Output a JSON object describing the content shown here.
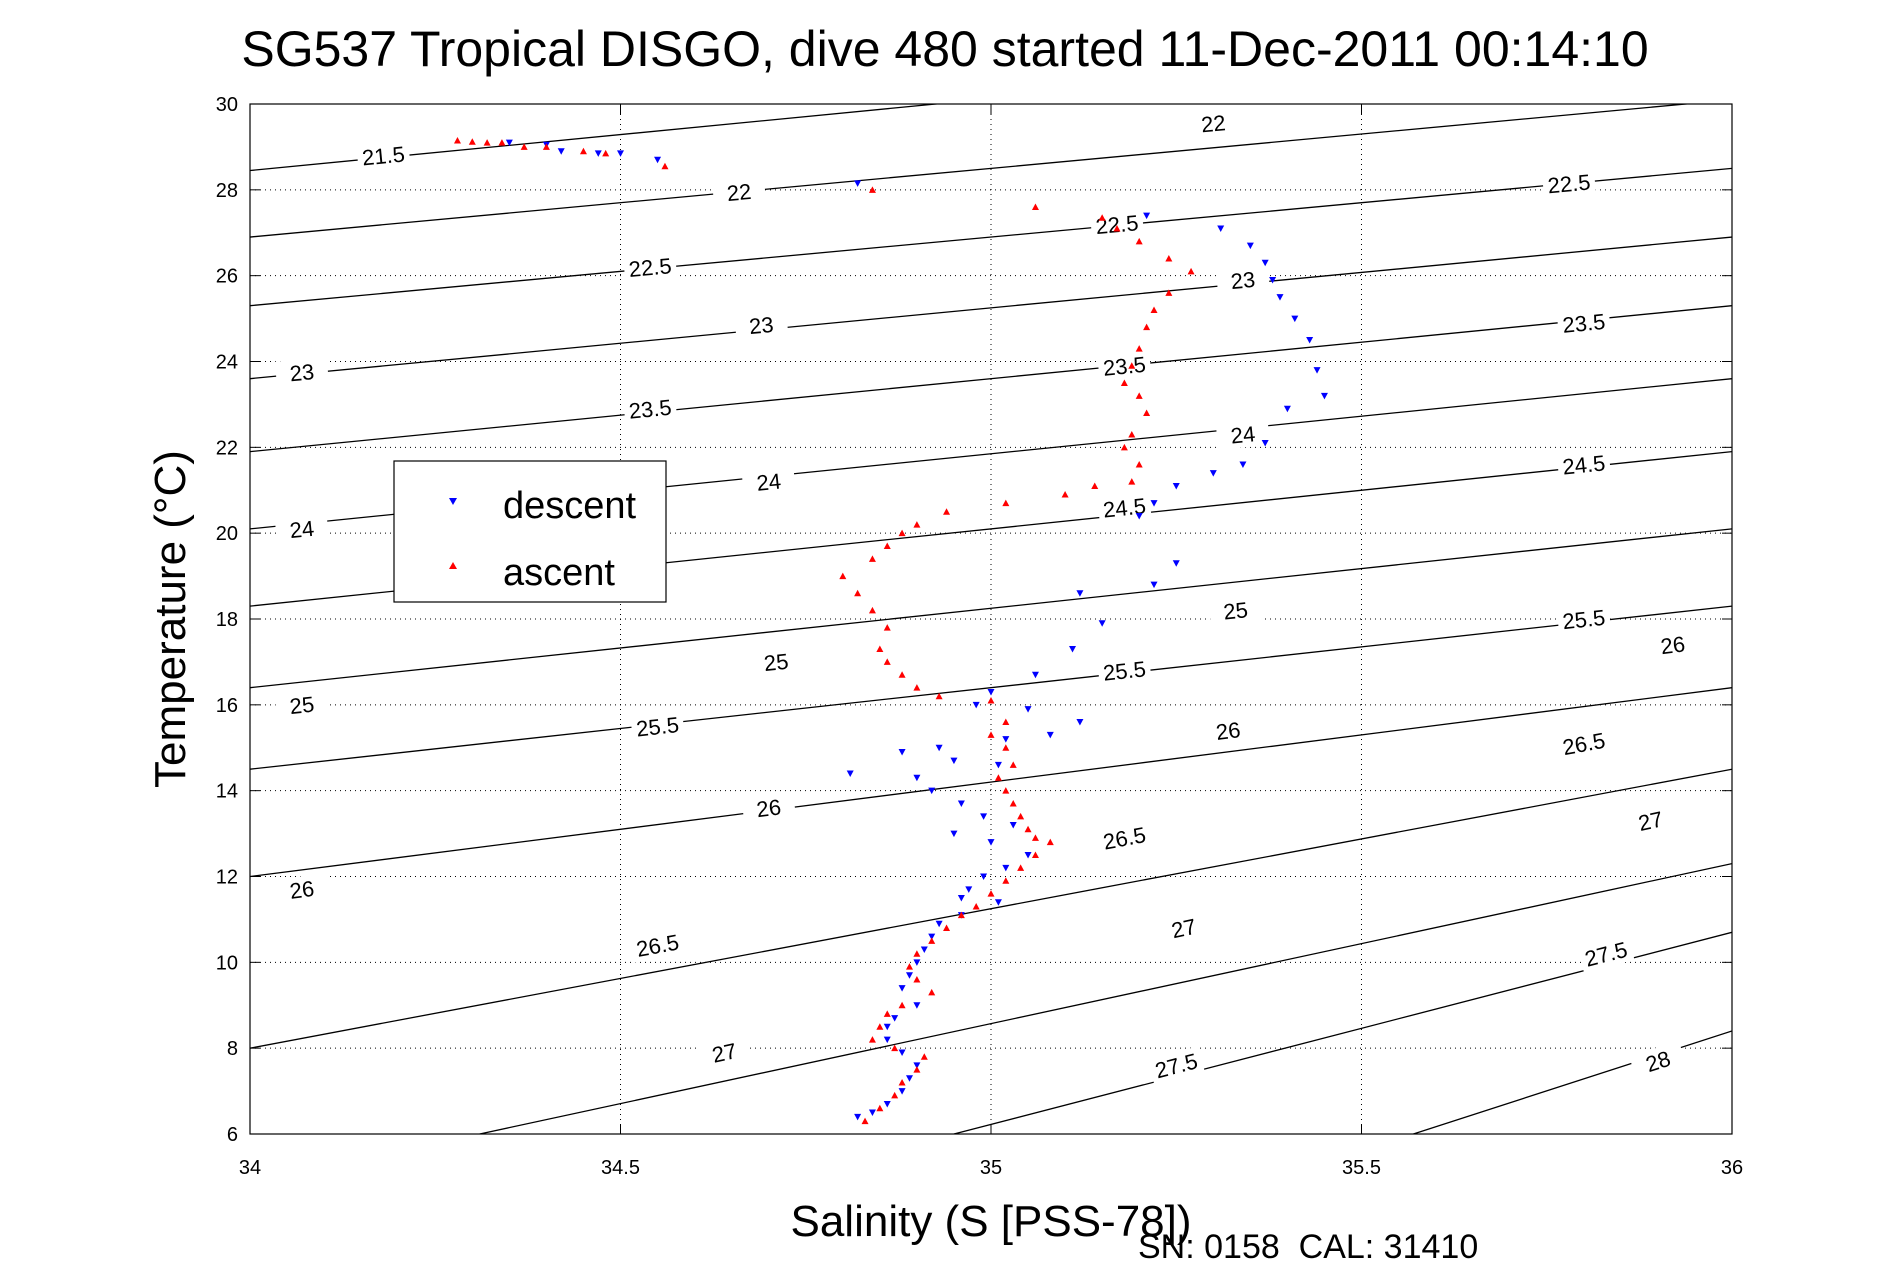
{
  "chart_data": {
    "type": "scatter",
    "title": "SG537 Tropical DISGO, dive 480 started 11-Dec-2011 00:14:10",
    "xlabel": "Salinity (S [PSS-78])",
    "ylabel": "Temperature (°C)",
    "xlim": [
      34,
      36
    ],
    "ylim": [
      6,
      30
    ],
    "x_ticks": [
      "34",
      "34.5",
      "35",
      "35.5",
      "36"
    ],
    "y_ticks": [
      "6",
      "8",
      "10",
      "12",
      "14",
      "16",
      "18",
      "20",
      "22",
      "24",
      "26",
      "28",
      "30"
    ],
    "grid": "on",
    "legend": {
      "position": "left-middle",
      "entries": [
        "descent",
        "ascent"
      ]
    },
    "footer": "SN: 0158  CAL: 31410",
    "colors": {
      "descent": "#0000ff",
      "ascent": "#ff0000",
      "contours": "#000000"
    },
    "series": [
      {
        "name": "descent",
        "marker": "triangle-down",
        "points": [
          [
            34.35,
            29.1
          ],
          [
            34.4,
            29.05
          ],
          [
            34.42,
            28.9
          ],
          [
            34.47,
            28.85
          ],
          [
            34.5,
            28.85
          ],
          [
            34.55,
            28.7
          ],
          [
            34.82,
            28.15
          ],
          [
            35.21,
            27.4
          ],
          [
            35.31,
            27.1
          ],
          [
            35.35,
            26.7
          ],
          [
            35.37,
            26.3
          ],
          [
            35.38,
            25.9
          ],
          [
            35.39,
            25.5
          ],
          [
            35.41,
            25.0
          ],
          [
            35.43,
            24.5
          ],
          [
            35.44,
            23.8
          ],
          [
            35.45,
            23.2
          ],
          [
            35.4,
            22.9
          ],
          [
            35.37,
            22.1
          ],
          [
            35.34,
            21.6
          ],
          [
            35.3,
            21.4
          ],
          [
            35.25,
            21.1
          ],
          [
            35.22,
            20.7
          ],
          [
            35.2,
            20.4
          ],
          [
            35.25,
            19.3
          ],
          [
            35.22,
            18.8
          ],
          [
            35.12,
            18.6
          ],
          [
            35.15,
            17.9
          ],
          [
            35.11,
            17.3
          ],
          [
            35.06,
            16.7
          ],
          [
            35.0,
            16.3
          ],
          [
            34.98,
            16.0
          ],
          [
            35.05,
            15.9
          ],
          [
            35.12,
            15.6
          ],
          [
            35.08,
            15.3
          ],
          [
            35.02,
            15.2
          ],
          [
            34.93,
            15.0
          ],
          [
            34.88,
            14.9
          ],
          [
            34.95,
            14.7
          ],
          [
            35.01,
            14.6
          ],
          [
            34.9,
            14.3
          ],
          [
            34.81,
            14.4
          ],
          [
            34.92,
            14.0
          ],
          [
            34.96,
            13.7
          ],
          [
            34.99,
            13.4
          ],
          [
            35.03,
            13.2
          ],
          [
            34.95,
            13.0
          ],
          [
            35.0,
            12.8
          ],
          [
            35.05,
            12.5
          ],
          [
            35.02,
            12.2
          ],
          [
            34.99,
            12.0
          ],
          [
            34.97,
            11.7
          ],
          [
            34.96,
            11.5
          ],
          [
            35.01,
            11.4
          ],
          [
            34.96,
            11.1
          ],
          [
            34.93,
            10.9
          ],
          [
            34.92,
            10.6
          ],
          [
            34.91,
            10.3
          ],
          [
            34.9,
            10.0
          ],
          [
            34.89,
            9.7
          ],
          [
            34.88,
            9.4
          ],
          [
            34.9,
            9.0
          ],
          [
            34.87,
            8.7
          ],
          [
            34.86,
            8.5
          ],
          [
            34.86,
            8.2
          ],
          [
            34.88,
            7.9
          ],
          [
            34.9,
            7.6
          ],
          [
            34.89,
            7.3
          ],
          [
            34.88,
            7.0
          ],
          [
            34.86,
            6.7
          ],
          [
            34.84,
            6.5
          ],
          [
            34.82,
            6.4
          ]
        ]
      },
      {
        "name": "ascent",
        "marker": "triangle-up",
        "points": [
          [
            34.28,
            29.15
          ],
          [
            34.3,
            29.12
          ],
          [
            34.32,
            29.1
          ],
          [
            34.34,
            29.1
          ],
          [
            34.37,
            29.0
          ],
          [
            34.4,
            29.0
          ],
          [
            34.45,
            28.9
          ],
          [
            34.48,
            28.85
          ],
          [
            34.56,
            28.55
          ],
          [
            34.84,
            28.0
          ],
          [
            35.06,
            27.6
          ],
          [
            35.15,
            27.35
          ],
          [
            35.17,
            27.1
          ],
          [
            35.2,
            26.8
          ],
          [
            35.24,
            26.4
          ],
          [
            35.27,
            26.1
          ],
          [
            35.24,
            25.6
          ],
          [
            35.22,
            25.2
          ],
          [
            35.21,
            24.8
          ],
          [
            35.2,
            24.3
          ],
          [
            35.19,
            23.9
          ],
          [
            35.18,
            23.5
          ],
          [
            35.2,
            23.2
          ],
          [
            35.21,
            22.8
          ],
          [
            35.19,
            22.3
          ],
          [
            35.18,
            22.0
          ],
          [
            35.2,
            21.6
          ],
          [
            35.19,
            21.2
          ],
          [
            35.14,
            21.1
          ],
          [
            35.1,
            20.9
          ],
          [
            35.02,
            20.7
          ],
          [
            34.94,
            20.5
          ],
          [
            34.9,
            20.2
          ],
          [
            34.88,
            20.0
          ],
          [
            34.86,
            19.7
          ],
          [
            34.84,
            19.4
          ],
          [
            34.8,
            19.0
          ],
          [
            34.82,
            18.6
          ],
          [
            34.84,
            18.2
          ],
          [
            34.86,
            17.8
          ],
          [
            34.85,
            17.3
          ],
          [
            34.86,
            17.0
          ],
          [
            34.88,
            16.7
          ],
          [
            34.9,
            16.4
          ],
          [
            34.93,
            16.2
          ],
          [
            35.0,
            16.1
          ],
          [
            35.02,
            15.6
          ],
          [
            35.0,
            15.3
          ],
          [
            35.02,
            15.0
          ],
          [
            35.03,
            14.6
          ],
          [
            35.01,
            14.3
          ],
          [
            35.02,
            14.0
          ],
          [
            35.03,
            13.7
          ],
          [
            35.04,
            13.4
          ],
          [
            35.05,
            13.1
          ],
          [
            35.06,
            12.9
          ],
          [
            35.08,
            12.8
          ],
          [
            35.06,
            12.5
          ],
          [
            35.04,
            12.2
          ],
          [
            35.02,
            11.9
          ],
          [
            35.0,
            11.6
          ],
          [
            34.98,
            11.3
          ],
          [
            34.96,
            11.1
          ],
          [
            34.94,
            10.8
          ],
          [
            34.92,
            10.5
          ],
          [
            34.9,
            10.2
          ],
          [
            34.89,
            9.9
          ],
          [
            34.9,
            9.6
          ],
          [
            34.92,
            9.3
          ],
          [
            34.88,
            9.0
          ],
          [
            34.86,
            8.8
          ],
          [
            34.85,
            8.5
          ],
          [
            34.84,
            8.2
          ],
          [
            34.87,
            8.0
          ],
          [
            34.91,
            7.8
          ],
          [
            34.9,
            7.5
          ],
          [
            34.88,
            7.2
          ],
          [
            34.87,
            6.9
          ],
          [
            34.85,
            6.6
          ],
          [
            34.83,
            6.3
          ]
        ]
      }
    ],
    "contours": [
      {
        "label": "21.5",
        "values": [
          [
            34.0,
            28.45
          ],
          [
            36.0,
            31.8
          ]
        ],
        "labels_at": [
          [
            34.18,
            28.8
          ]
        ]
      },
      {
        "label": "22",
        "values": [
          [
            34.0,
            26.9
          ],
          [
            36.0,
            30.1
          ]
        ],
        "labels_at": [
          [
            34.66,
            27.95
          ],
          [
            35.3,
            29.55
          ]
        ]
      },
      {
        "label": "22.5",
        "values": [
          [
            34.0,
            25.3
          ],
          [
            36.0,
            28.5
          ]
        ],
        "labels_at": [
          [
            34.54,
            26.2
          ],
          [
            35.17,
            27.2
          ],
          [
            35.78,
            28.15
          ]
        ]
      },
      {
        "label": "23",
        "values": [
          [
            34.0,
            23.6
          ],
          [
            36.0,
            26.9
          ]
        ],
        "labels_at": [
          [
            34.07,
            23.75
          ],
          [
            34.69,
            24.85
          ],
          [
            35.34,
            25.9
          ]
        ]
      },
      {
        "label": "23.5",
        "values": [
          [
            34.0,
            21.9
          ],
          [
            36.0,
            25.3
          ]
        ],
        "labels_at": [
          [
            34.54,
            22.9
          ],
          [
            35.18,
            23.9
          ],
          [
            35.8,
            24.9
          ]
        ]
      },
      {
        "label": "24",
        "values": [
          [
            34.0,
            20.1
          ],
          [
            36.0,
            23.6
          ]
        ],
        "labels_at": [
          [
            34.07,
            20.1
          ],
          [
            34.7,
            21.2
          ],
          [
            35.34,
            22.3
          ]
        ]
      },
      {
        "label": "24.5",
        "values": [
          [
            34.0,
            18.3
          ],
          [
            36.0,
            21.9
          ]
        ],
        "labels_at": [
          [
            35.18,
            20.6
          ],
          [
            35.8,
            21.6
          ]
        ]
      },
      {
        "label": "25",
        "values": [
          [
            34.0,
            16.4
          ],
          [
            36.0,
            20.1
          ]
        ],
        "labels_at": [
          [
            34.07,
            16.0
          ],
          [
            34.71,
            17.0
          ],
          [
            35.33,
            18.2
          ]
        ]
      },
      {
        "label": "25.5",
        "values": [
          [
            34.0,
            14.5
          ],
          [
            36.0,
            18.3
          ]
        ],
        "labels_at": [
          [
            34.55,
            15.5
          ],
          [
            35.18,
            16.8
          ],
          [
            35.8,
            18.0
          ]
        ]
      },
      {
        "label": "26",
        "values": [
          [
            34.0,
            12.0
          ],
          [
            36.0,
            16.4
          ]
        ],
        "labels_at": [
          [
            34.07,
            11.7
          ],
          [
            34.7,
            13.6
          ],
          [
            35.32,
            15.4
          ],
          [
            35.92,
            17.4
          ]
        ]
      },
      {
        "label": "26.5",
        "values": [
          [
            34.0,
            8.0
          ],
          [
            36.0,
            14.5
          ]
        ],
        "labels_at": [
          [
            34.55,
            10.4
          ],
          [
            35.18,
            12.9
          ],
          [
            35.8,
            15.1
          ]
        ]
      },
      {
        "label": "27",
        "values": [
          [
            34.31,
            6.0
          ],
          [
            36.0,
            12.3
          ]
        ],
        "labels_at": [
          [
            34.64,
            7.9
          ],
          [
            35.26,
            10.8
          ],
          [
            35.89,
            13.3
          ]
        ]
      },
      {
        "label": "27.5",
        "values": [
          [
            34.95,
            6.0
          ],
          [
            36.0,
            10.7
          ]
        ],
        "labels_at": [
          [
            35.25,
            7.6
          ],
          [
            35.83,
            10.2
          ]
        ]
      },
      {
        "label": "28",
        "values": [
          [
            35.57,
            6.0
          ],
          [
            36.0,
            8.4
          ]
        ],
        "labels_at": [
          [
            35.9,
            7.7
          ]
        ]
      }
    ]
  }
}
